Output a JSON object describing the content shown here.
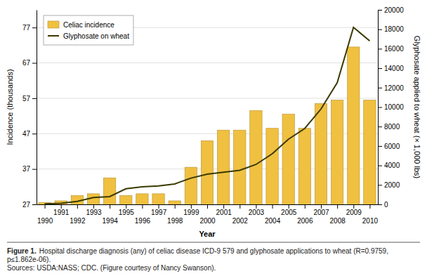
{
  "chart_data": {
    "type": "bar",
    "xlabel": "Year",
    "ylabel": "Incidence (thousands)",
    "y2label": "Glyphosate applied to wheat (× 1,000 lbs)",
    "x": [
      1990,
      1991,
      1992,
      1993,
      1994,
      1995,
      1996,
      1997,
      1998,
      1999,
      2000,
      2001,
      2002,
      2003,
      2004,
      2005,
      2006,
      2007,
      2008,
      2009,
      2010
    ],
    "xlim": [
      1989.5,
      2010.5
    ],
    "xticks": [
      1990,
      1991,
      1992,
      1993,
      1994,
      1995,
      1996,
      1997,
      1998,
      1999,
      2000,
      2001,
      2002,
      2003,
      2004,
      2005,
      2006,
      2007,
      2008,
      2009,
      2010
    ],
    "series": [
      {
        "name": "Celiac incidence",
        "type": "bar",
        "color": "#F0C040",
        "values": [
          27.5,
          28.0,
          29.5,
          30.0,
          34.5,
          29.5,
          30.0,
          30.0,
          28.0,
          37.5,
          45.0,
          48.0,
          48.0,
          53.5,
          48.5,
          52.5,
          48.5,
          55.5,
          56.5,
          71.5,
          56.5
        ]
      },
      {
        "name": "Glyphosate on wheat",
        "type": "line",
        "color": "#3A3A00",
        "axis": "y2",
        "values": [
          50,
          100,
          300,
          700,
          800,
          1600,
          1800,
          1900,
          2100,
          2700,
          3100,
          3300,
          3500,
          4100,
          5200,
          6700,
          7800,
          9800,
          12500,
          18200,
          16800
        ]
      }
    ],
    "ylim": [
      27,
      82
    ],
    "yticks": [
      27,
      37,
      47,
      57,
      67,
      77
    ],
    "y2lim": [
      0,
      20000
    ],
    "y2ticks": [
      0,
      2000,
      4000,
      6000,
      8000,
      10000,
      12000,
      14000,
      16000,
      18000,
      20000
    ],
    "grid": true,
    "legend": "upper left",
    "annotations": [
      "Figure 1.",
      "Hospital discharge diagnosis (any) of celiac disease ICD-9 579 and glyphosate applications to wheat (R=0.9759, p≤1.862e-06).",
      "Sources: USDA:NASS; CDC. (Figure courtesy of Nancy Swanson)."
    ]
  }
}
